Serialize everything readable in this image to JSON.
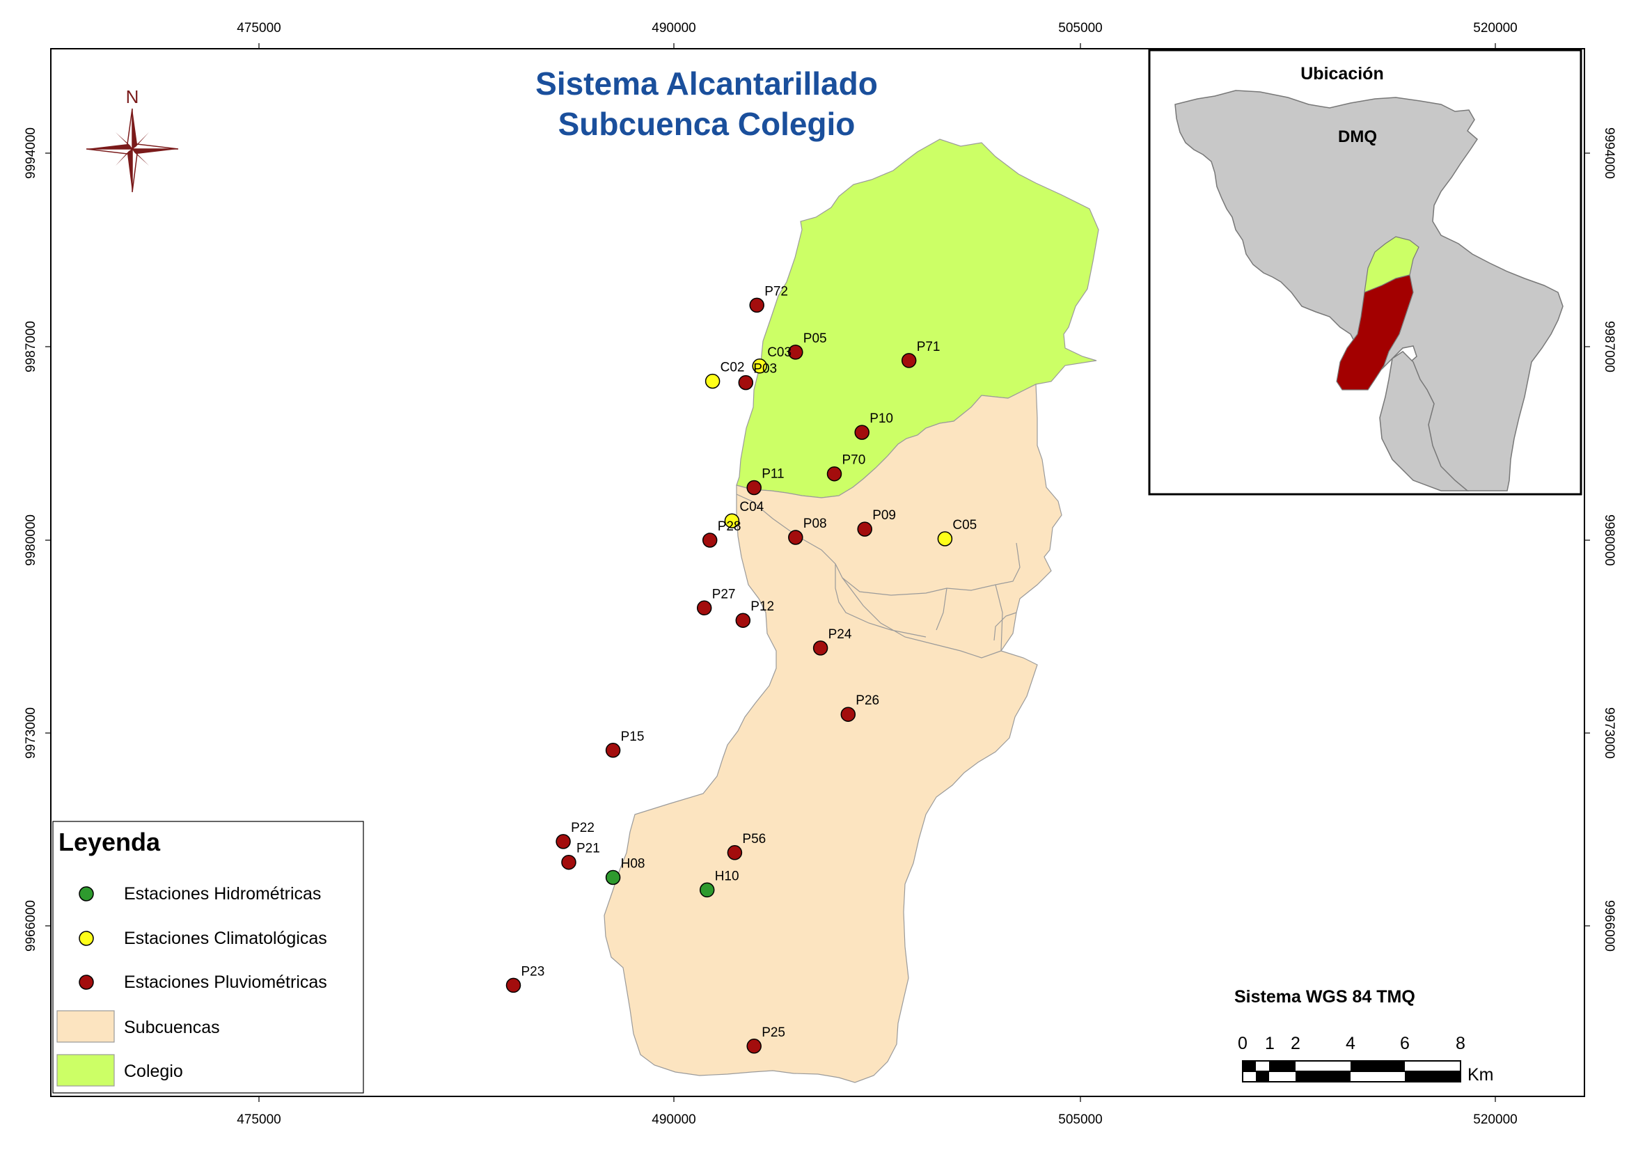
{
  "title": {
    "line1": "Sistema Alcantarillado",
    "line2": "Subcuenca Colegio"
  },
  "north_arrow": {
    "label": "N"
  },
  "grid": {
    "x_ticks": [
      "475000",
      "490000",
      "505000",
      "520000"
    ],
    "y_ticks": [
      "9994000",
      "9987000",
      "9980000",
      "9973000",
      "9966000"
    ]
  },
  "inset": {
    "title": "Ubicación",
    "region_label": "DMQ"
  },
  "legend": {
    "title": "Leyenda",
    "items": [
      {
        "label": "Estaciones Hidrométricas",
        "color": "#2e9a2e"
      },
      {
        "label": "Estaciones Climatológicas",
        "color": "#ffff1a"
      },
      {
        "label": "Estaciones Pluviométricas",
        "color": "#a30d0d"
      },
      {
        "label": "Subcuencas",
        "color": "#fce4c0"
      },
      {
        "label": "Colegio",
        "color": "#ccff66"
      }
    ]
  },
  "coordinate_system": "Sistema WGS 84 TMQ",
  "scale_bar": {
    "labels": [
      "0",
      "1",
      "2",
      "4",
      "6",
      "8"
    ],
    "unit": "Km"
  },
  "colors": {
    "colegio": "#ccff66",
    "subcuencas": "#fce4c0",
    "dmq": "#c8c8c8",
    "inset_red": "#a30000",
    "title": "#1a4f9c",
    "north_arrow": "#7a1a1a"
  },
  "stations": [
    {
      "id": "P72",
      "type": "pluvio",
      "x": 493000,
      "y": 9988500
    },
    {
      "id": "P05",
      "type": "pluvio",
      "x": 494400,
      "y": 9986800
    },
    {
      "id": "C03",
      "type": "clima",
      "x": 493100,
      "y": 9986300
    },
    {
      "id": "C02",
      "type": "clima",
      "x": 491400,
      "y": 9985750
    },
    {
      "id": "P03",
      "type": "pluvio",
      "x": 492600,
      "y": 9985700
    },
    {
      "id": "P71",
      "type": "pluvio",
      "x": 498500,
      "y": 9986500
    },
    {
      "id": "P10",
      "type": "pluvio",
      "x": 496800,
      "y": 9983900
    },
    {
      "id": "P70",
      "type": "pluvio",
      "x": 495800,
      "y": 9982400
    },
    {
      "id": "P11",
      "type": "pluvio",
      "x": 492900,
      "y": 9981900
    },
    {
      "id": "C04",
      "type": "clima",
      "x": 492100,
      "y": 9980700
    },
    {
      "id": "P28",
      "type": "pluvio",
      "x": 491300,
      "y": 9980000
    },
    {
      "id": "P08",
      "type": "pluvio",
      "x": 494400,
      "y": 9980100
    },
    {
      "id": "P09",
      "type": "pluvio",
      "x": 496900,
      "y": 9980400
    },
    {
      "id": "C05",
      "type": "clima",
      "x": 499800,
      "y": 9980050
    },
    {
      "id": "P27",
      "type": "pluvio",
      "x": 491100,
      "y": 9977550
    },
    {
      "id": "P12",
      "type": "pluvio",
      "x": 492500,
      "y": 9977100
    },
    {
      "id": "P24",
      "type": "pluvio",
      "x": 495300,
      "y": 9976100
    },
    {
      "id": "P26",
      "type": "pluvio",
      "x": 496300,
      "y": 9973700
    },
    {
      "id": "P15",
      "type": "pluvio",
      "x": 487800,
      "y": 9972400
    },
    {
      "id": "P22",
      "type": "pluvio",
      "x": 486000,
      "y": 9969100
    },
    {
      "id": "P21",
      "type": "pluvio",
      "x": 486200,
      "y": 9968350
    },
    {
      "id": "P56",
      "type": "pluvio",
      "x": 492200,
      "y": 9968700
    },
    {
      "id": "H08",
      "type": "hidro",
      "x": 487800,
      "y": 9967800
    },
    {
      "id": "H10",
      "type": "hidro",
      "x": 491200,
      "y": 9967350
    },
    {
      "id": "P23",
      "type": "pluvio",
      "x": 484200,
      "y": 9963900
    },
    {
      "id": "P25",
      "type": "pluvio",
      "x": 492900,
      "y": 9961700
    }
  ]
}
